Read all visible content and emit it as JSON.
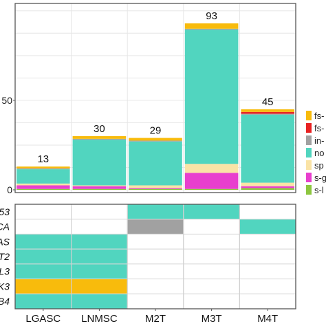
{
  "chart_data": {
    "type": "bar",
    "stacked": true,
    "categories": [
      "LGASC",
      "LNMSC",
      "M2T",
      "M3T",
      "M4T"
    ],
    "totals": [
      13,
      30,
      29,
      93,
      45
    ],
    "yticks": [
      0,
      50
    ],
    "ylim": [
      0,
      100
    ],
    "grid": true,
    "series": [
      {
        "name": "s-l",
        "color": "#8dc63f",
        "values": [
          0.5,
          0.5,
          0.5,
          0.5,
          1
        ]
      },
      {
        "name": "s-g",
        "color": "#e83fce",
        "values": [
          2,
          1.5,
          0.5,
          9,
          1
        ]
      },
      {
        "name": "sp",
        "color": "#fae3a6",
        "values": [
          1,
          0.5,
          1.5,
          5,
          2
        ]
      },
      {
        "name": "no",
        "color": "#51d5bf",
        "values": [
          8,
          25.5,
          24.5,
          75,
          38
        ]
      },
      {
        "name": "in-",
        "color": "#a1a1a1",
        "values": [
          0.5,
          0.5,
          0.5,
          0.5,
          0.5
        ]
      },
      {
        "name": "fs-",
        "color": "#e82222",
        "values": [
          0,
          0,
          0,
          0,
          1
        ]
      },
      {
        "name": "fs-",
        "color": "#f8bb0c",
        "values": [
          1,
          1.5,
          1.5,
          3,
          1.5
        ]
      }
    ],
    "legend_placement": "right",
    "heatmap": {
      "rows": [
        "53",
        "CA",
        "AS",
        "T2",
        "L3",
        "K3",
        "B4"
      ],
      "cells": [
        [
          null,
          null,
          "#51d5bf",
          "#51d5bf",
          null
        ],
        [
          null,
          null,
          "#a1a1a1",
          null,
          "#51d5bf"
        ],
        [
          "#51d5bf",
          "#51d5bf",
          null,
          null,
          null
        ],
        [
          "#51d5bf",
          "#51d5bf",
          null,
          null,
          null
        ],
        [
          "#51d5bf",
          "#51d5bf",
          null,
          null,
          null
        ],
        [
          "#f8bb0c",
          "#f8bb0c",
          null,
          null,
          null
        ],
        [
          "#51d5bf",
          "#51d5bf",
          null,
          null,
          null
        ]
      ]
    }
  }
}
